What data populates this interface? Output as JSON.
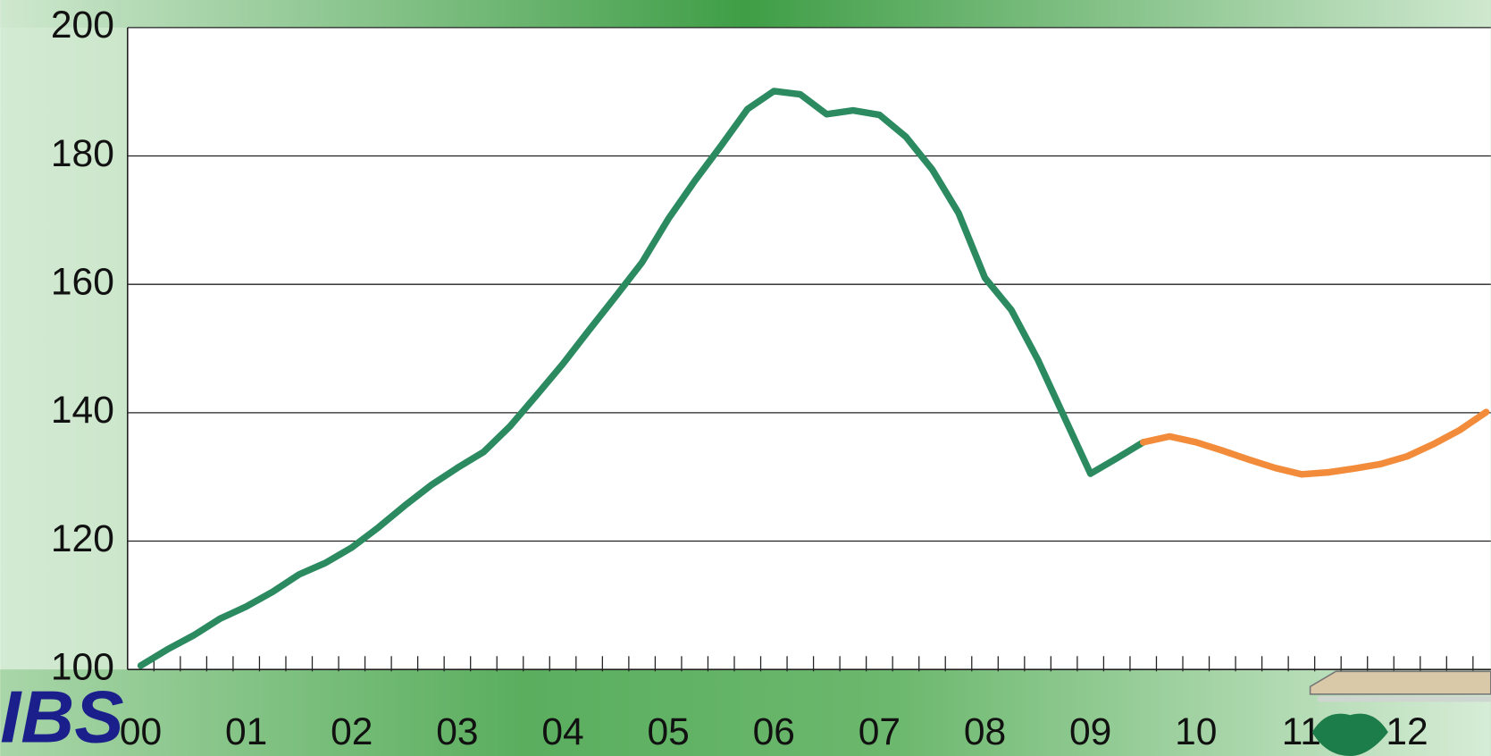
{
  "chart_data": {
    "type": "line",
    "categories": [
      "00",
      null,
      null,
      null,
      "01",
      null,
      null,
      null,
      "02",
      null,
      null,
      null,
      "03",
      null,
      null,
      null,
      "04",
      null,
      null,
      null,
      "05",
      null,
      null,
      null,
      "06",
      null,
      null,
      null,
      "07",
      null,
      null,
      null,
      "08",
      null,
      null,
      null,
      "09",
      null,
      null,
      null,
      "10",
      null,
      null,
      null,
      "11",
      null,
      null,
      null,
      "12",
      null,
      null,
      null
    ],
    "series": [
      {
        "color": "#2b8a5f",
        "values": [
          100.6,
          103.1,
          105.3,
          107.9,
          109.8,
          112.1,
          114.8,
          116.6,
          119.0,
          122.1,
          125.5,
          128.7,
          131.4,
          133.9,
          137.9,
          142.7,
          147.6,
          152.9,
          158.1,
          163.4,
          170.2,
          176.1,
          181.6,
          187.3,
          190.1,
          189.6,
          186.5,
          187.1,
          186.4,
          183.0,
          177.9,
          171.1,
          161.0,
          156.0,
          148.3,
          139.4,
          130.5,
          132.9,
          135.4,
          null,
          null,
          null,
          null,
          null,
          null,
          null,
          null,
          null,
          null,
          null,
          null,
          null
        ]
      },
      {
        "color": "#f28c3a",
        "values": [
          null,
          null,
          null,
          null,
          null,
          null,
          null,
          null,
          null,
          null,
          null,
          null,
          null,
          null,
          null,
          null,
          null,
          null,
          null,
          null,
          null,
          null,
          null,
          null,
          null,
          null,
          null,
          null,
          null,
          null,
          null,
          null,
          null,
          null,
          null,
          null,
          null,
          null,
          135.4,
          136.3,
          135.4,
          134.1,
          132.7,
          131.4,
          130.4,
          130.7,
          131.3,
          132.0,
          133.2,
          135.1,
          137.3,
          140.1
        ]
      }
    ],
    "ylim": [
      100,
      200
    ],
    "yticks": [
      100,
      120,
      140,
      160,
      180,
      200
    ],
    "grid": true
  },
  "logo": "IBS"
}
